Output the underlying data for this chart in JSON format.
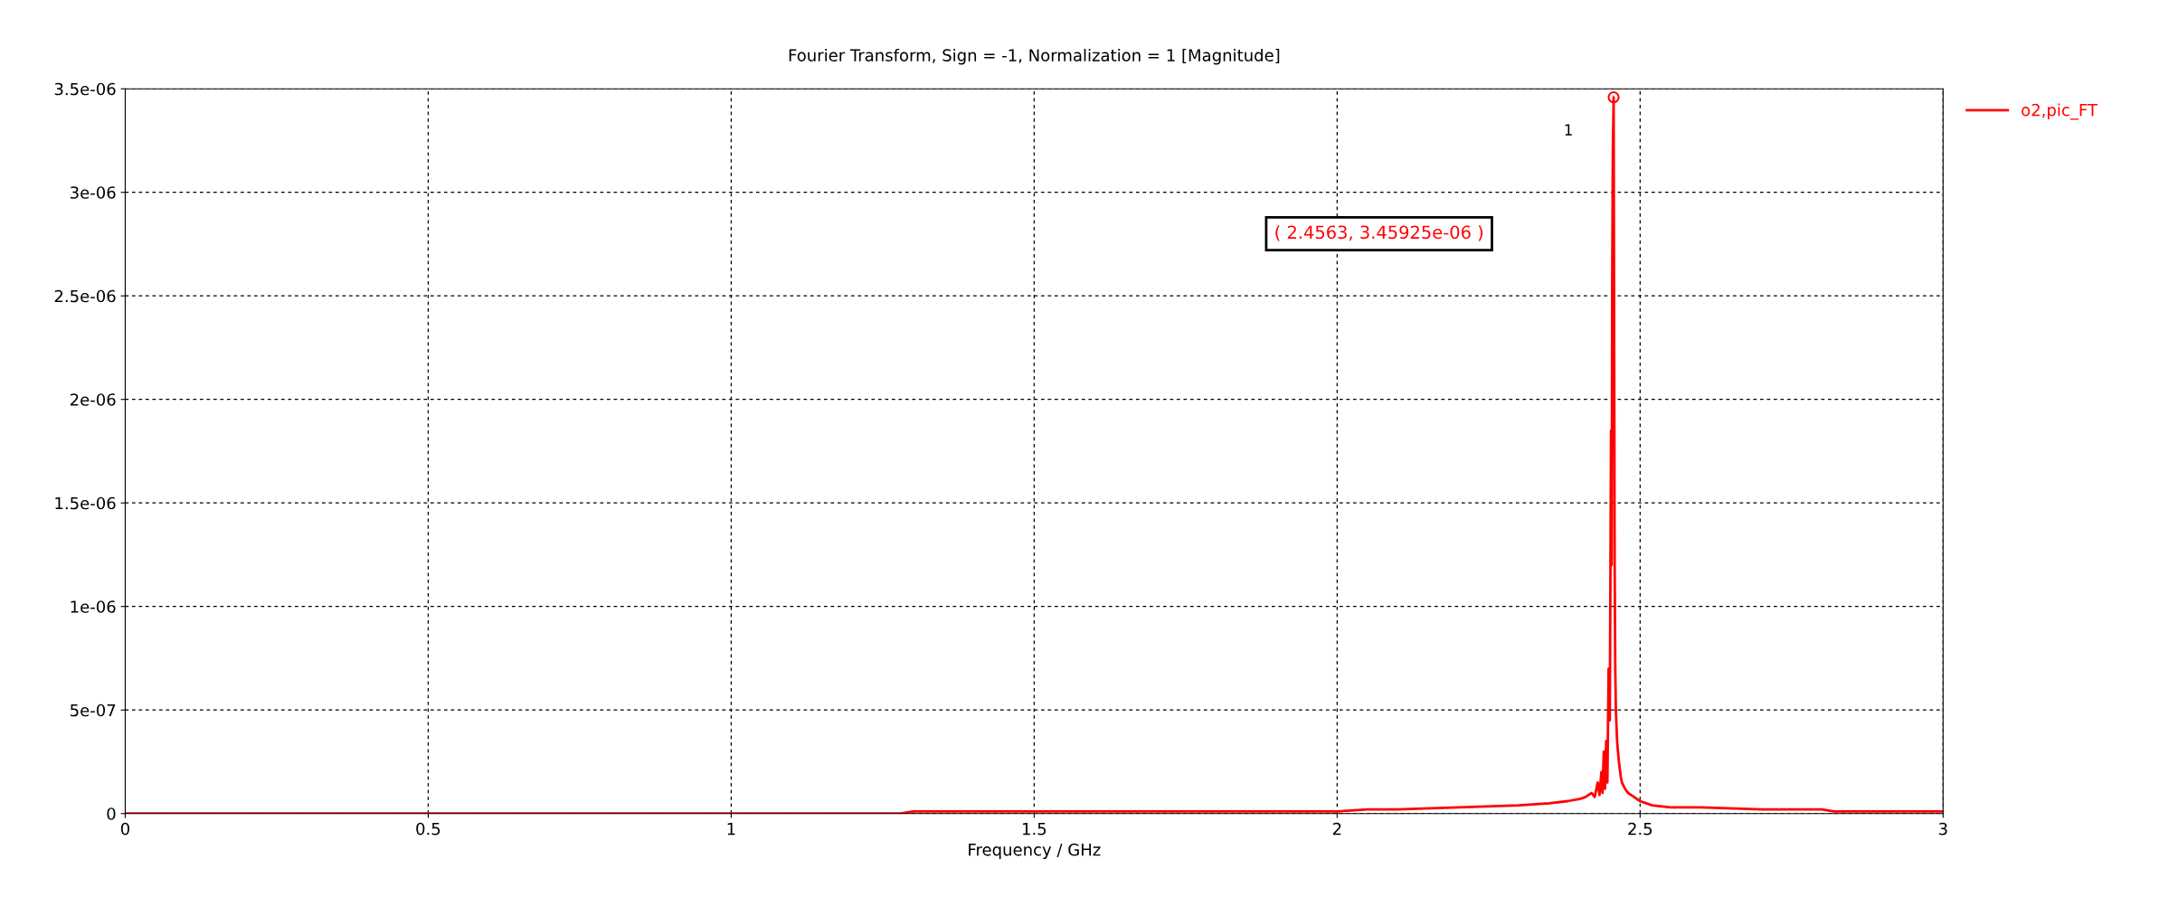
{
  "chart_data": {
    "type": "line",
    "title": "Fourier Transform, Sign = -1, Normalization = 1 [Magnitude]",
    "xlabel": "Frequency / GHz",
    "x": [
      0,
      0.5,
      1,
      1.28,
      1.3,
      1.5,
      2,
      2.05,
      2.1,
      2.2,
      2.3,
      2.35,
      2.38,
      2.4,
      2.41,
      2.42,
      2.425,
      2.43,
      2.433,
      2.436,
      2.438,
      2.44,
      2.442,
      2.444,
      2.446,
      2.448,
      2.45,
      2.452,
      2.453,
      2.454,
      2.455,
      2.4563,
      2.457,
      2.458,
      2.459,
      2.46,
      2.462,
      2.465,
      2.468,
      2.47,
      2.475,
      2.48,
      2.49,
      2.5,
      2.52,
      2.55,
      2.6,
      2.7,
      2.8,
      2.82,
      2.9,
      3
    ],
    "series": [
      {
        "name": "o2,pic_FT",
        "color": "#ff0000",
        "values": [
          0,
          0,
          0,
          0,
          1e-08,
          1e-08,
          1e-08,
          2e-08,
          2e-08,
          3e-08,
          4e-08,
          5e-08,
          6e-08,
          7e-08,
          8e-08,
          1e-07,
          8e-08,
          1.5e-07,
          9e-08,
          2e-07,
          1e-07,
          3e-07,
          1.2e-07,
          3.5e-07,
          1.5e-07,
          7e-07,
          4.5e-07,
          1.85e-06,
          1.2e-06,
          2.6e-06,
          3.2e-06,
          3.45925e-06,
          2.5e-06,
          1.2e-06,
          7e-07,
          5e-07,
          3.5e-07,
          2.5e-07,
          1.8e-07,
          1.5e-07,
          1.2e-07,
          1e-07,
          8e-08,
          6e-08,
          4e-08,
          3e-08,
          3e-08,
          2e-08,
          2e-08,
          1e-08,
          1e-08,
          1e-08
        ]
      }
    ],
    "xlim": [
      0,
      3
    ],
    "xticks": [
      0,
      0.5,
      1,
      1.5,
      2,
      2.5,
      3
    ],
    "ylim": [
      0,
      3.5e-06
    ],
    "yticks": [
      0,
      5e-07,
      1e-06,
      1.5e-06,
      2e-06,
      2.5e-06,
      3e-06,
      3.5e-06
    ],
    "grid": true,
    "legend": "right",
    "line_style": "solid",
    "marker": "none",
    "annotations": [
      "( 2.4563, 3.45925e-06 )",
      "1"
    ]
  }
}
